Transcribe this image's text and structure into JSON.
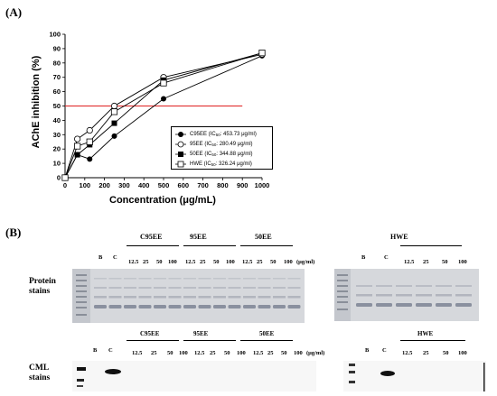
{
  "panel_a": {
    "label": "(A)",
    "ref_line_value": 50,
    "legend": {
      "ic50_value_unit": "μg/ml"
    },
    "chart_data": {
      "type": "line",
      "title": "",
      "xlabel": "Concentration (μg/mL)",
      "ylabel": "AChE inhibition (%)",
      "xlim": [
        0,
        1000
      ],
      "ylim": [
        0,
        100
      ],
      "xticks": [
        0,
        100,
        200,
        300,
        400,
        500,
        600,
        700,
        800,
        900,
        1000
      ],
      "yticks": [
        0,
        10,
        20,
        30,
        40,
        50,
        60,
        70,
        80,
        90,
        100
      ],
      "grid": false,
      "legend_position": "bottom-right",
      "series": [
        {
          "name": "C95EE",
          "ic50": "453.73",
          "marker": "filled-circle",
          "x": [
            0,
            62.5,
            125,
            250,
            500,
            1000
          ],
          "y": [
            0,
            16,
            13,
            29,
            55,
            85
          ]
        },
        {
          "name": "95EE",
          "ic50": "280.49",
          "marker": "open-circle",
          "x": [
            0,
            62.5,
            125,
            250,
            500,
            1000
          ],
          "y": [
            0,
            27,
            33,
            50,
            70,
            86
          ]
        },
        {
          "name": "50EE",
          "ic50": "344.88",
          "marker": "filled-square",
          "x": [
            0,
            62.5,
            125,
            250,
            500,
            1000
          ],
          "y": [
            0,
            16,
            23,
            38,
            68,
            87
          ]
        },
        {
          "name": "HWE",
          "ic50": "326.24",
          "marker": "open-square",
          "x": [
            0,
            62.5,
            125,
            250,
            500,
            1000
          ],
          "y": [
            0,
            22,
            25,
            46,
            66,
            87
          ]
        }
      ]
    }
  },
  "panel_b": {
    "label": "(B)",
    "unit": "(μg/ml)",
    "rows": [
      {
        "label_line1": "Protein",
        "label_line2": "stains"
      },
      {
        "label_line1": "CML",
        "label_line2": "stains"
      }
    ],
    "left_lanes": [
      "B",
      "C",
      "12.5",
      "25",
      "50",
      "100",
      "12.5",
      "25",
      "50",
      "100",
      "12.5",
      "25",
      "50",
      "100"
    ],
    "right_lanes": [
      "B",
      "C",
      "12.5",
      "25",
      "50",
      "100"
    ],
    "series_left": [
      "C95EE",
      "95EE",
      "50EE"
    ],
    "series_right": [
      "HWE"
    ]
  }
}
